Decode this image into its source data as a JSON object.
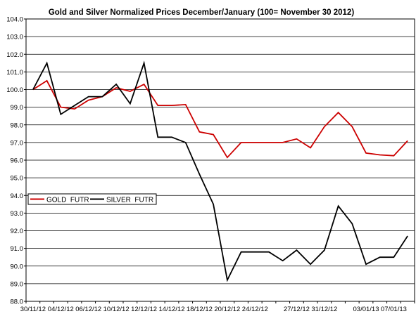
{
  "chart_data": {
    "type": "line",
    "title": "Gold and Silver Normalized Prices December/January (100= November 30 2012)",
    "xlabel": "",
    "ylabel": "",
    "ylim": [
      88.0,
      104.0
    ],
    "ystep": 1.0,
    "grid": true,
    "legend_position": "left-middle",
    "x_tick_labels": [
      "30/11/12",
      "04/12/12",
      "06/12/12",
      "10/12/12",
      "12/12/12",
      "14/12/12",
      "18/12/12",
      "20/12/12",
      "24/12/12",
      "27/12/12",
      "31/12/12",
      "03/01/13",
      "07/01/13"
    ],
    "x": [
      "30/11/12",
      "03/12/12",
      "04/12/12",
      "05/12/12",
      "06/12/12",
      "07/12/12",
      "10/12/12",
      "11/12/12",
      "12/12/12",
      "13/12/12",
      "14/12/12",
      "17/12/12",
      "18/12/12",
      "19/12/12",
      "20/12/12",
      "21/12/12",
      "24/12/12",
      "25/12/12",
      "26/12/12",
      "27/12/12",
      "28/12/12",
      "31/12/12",
      "01/01/13",
      "02/01/13",
      "03/01/13",
      "04/01/13",
      "07/01/13",
      "08/01/13"
    ],
    "series": [
      {
        "name": "GOLD  FUTR",
        "color": "#cc0000",
        "values": [
          100.0,
          100.5,
          99.0,
          98.9,
          99.4,
          99.6,
          100.1,
          99.9,
          100.3,
          99.1,
          99.1,
          99.15,
          97.6,
          97.45,
          96.15,
          97.0,
          97.0,
          97.0,
          97.0,
          97.2,
          96.7,
          97.9,
          98.7,
          97.9,
          96.4,
          96.3,
          96.25,
          97.1
        ]
      },
      {
        "name": "SILVER  FUTR",
        "color": "#000000",
        "values": [
          100.0,
          101.5,
          98.6,
          99.1,
          99.6,
          99.6,
          100.3,
          99.2,
          101.5,
          97.3,
          97.3,
          97.0,
          95.2,
          93.5,
          89.2,
          90.8,
          90.8,
          90.8,
          90.3,
          90.9,
          90.1,
          90.9,
          93.4,
          92.4,
          90.1,
          90.5,
          90.5,
          91.7
        ]
      }
    ]
  }
}
